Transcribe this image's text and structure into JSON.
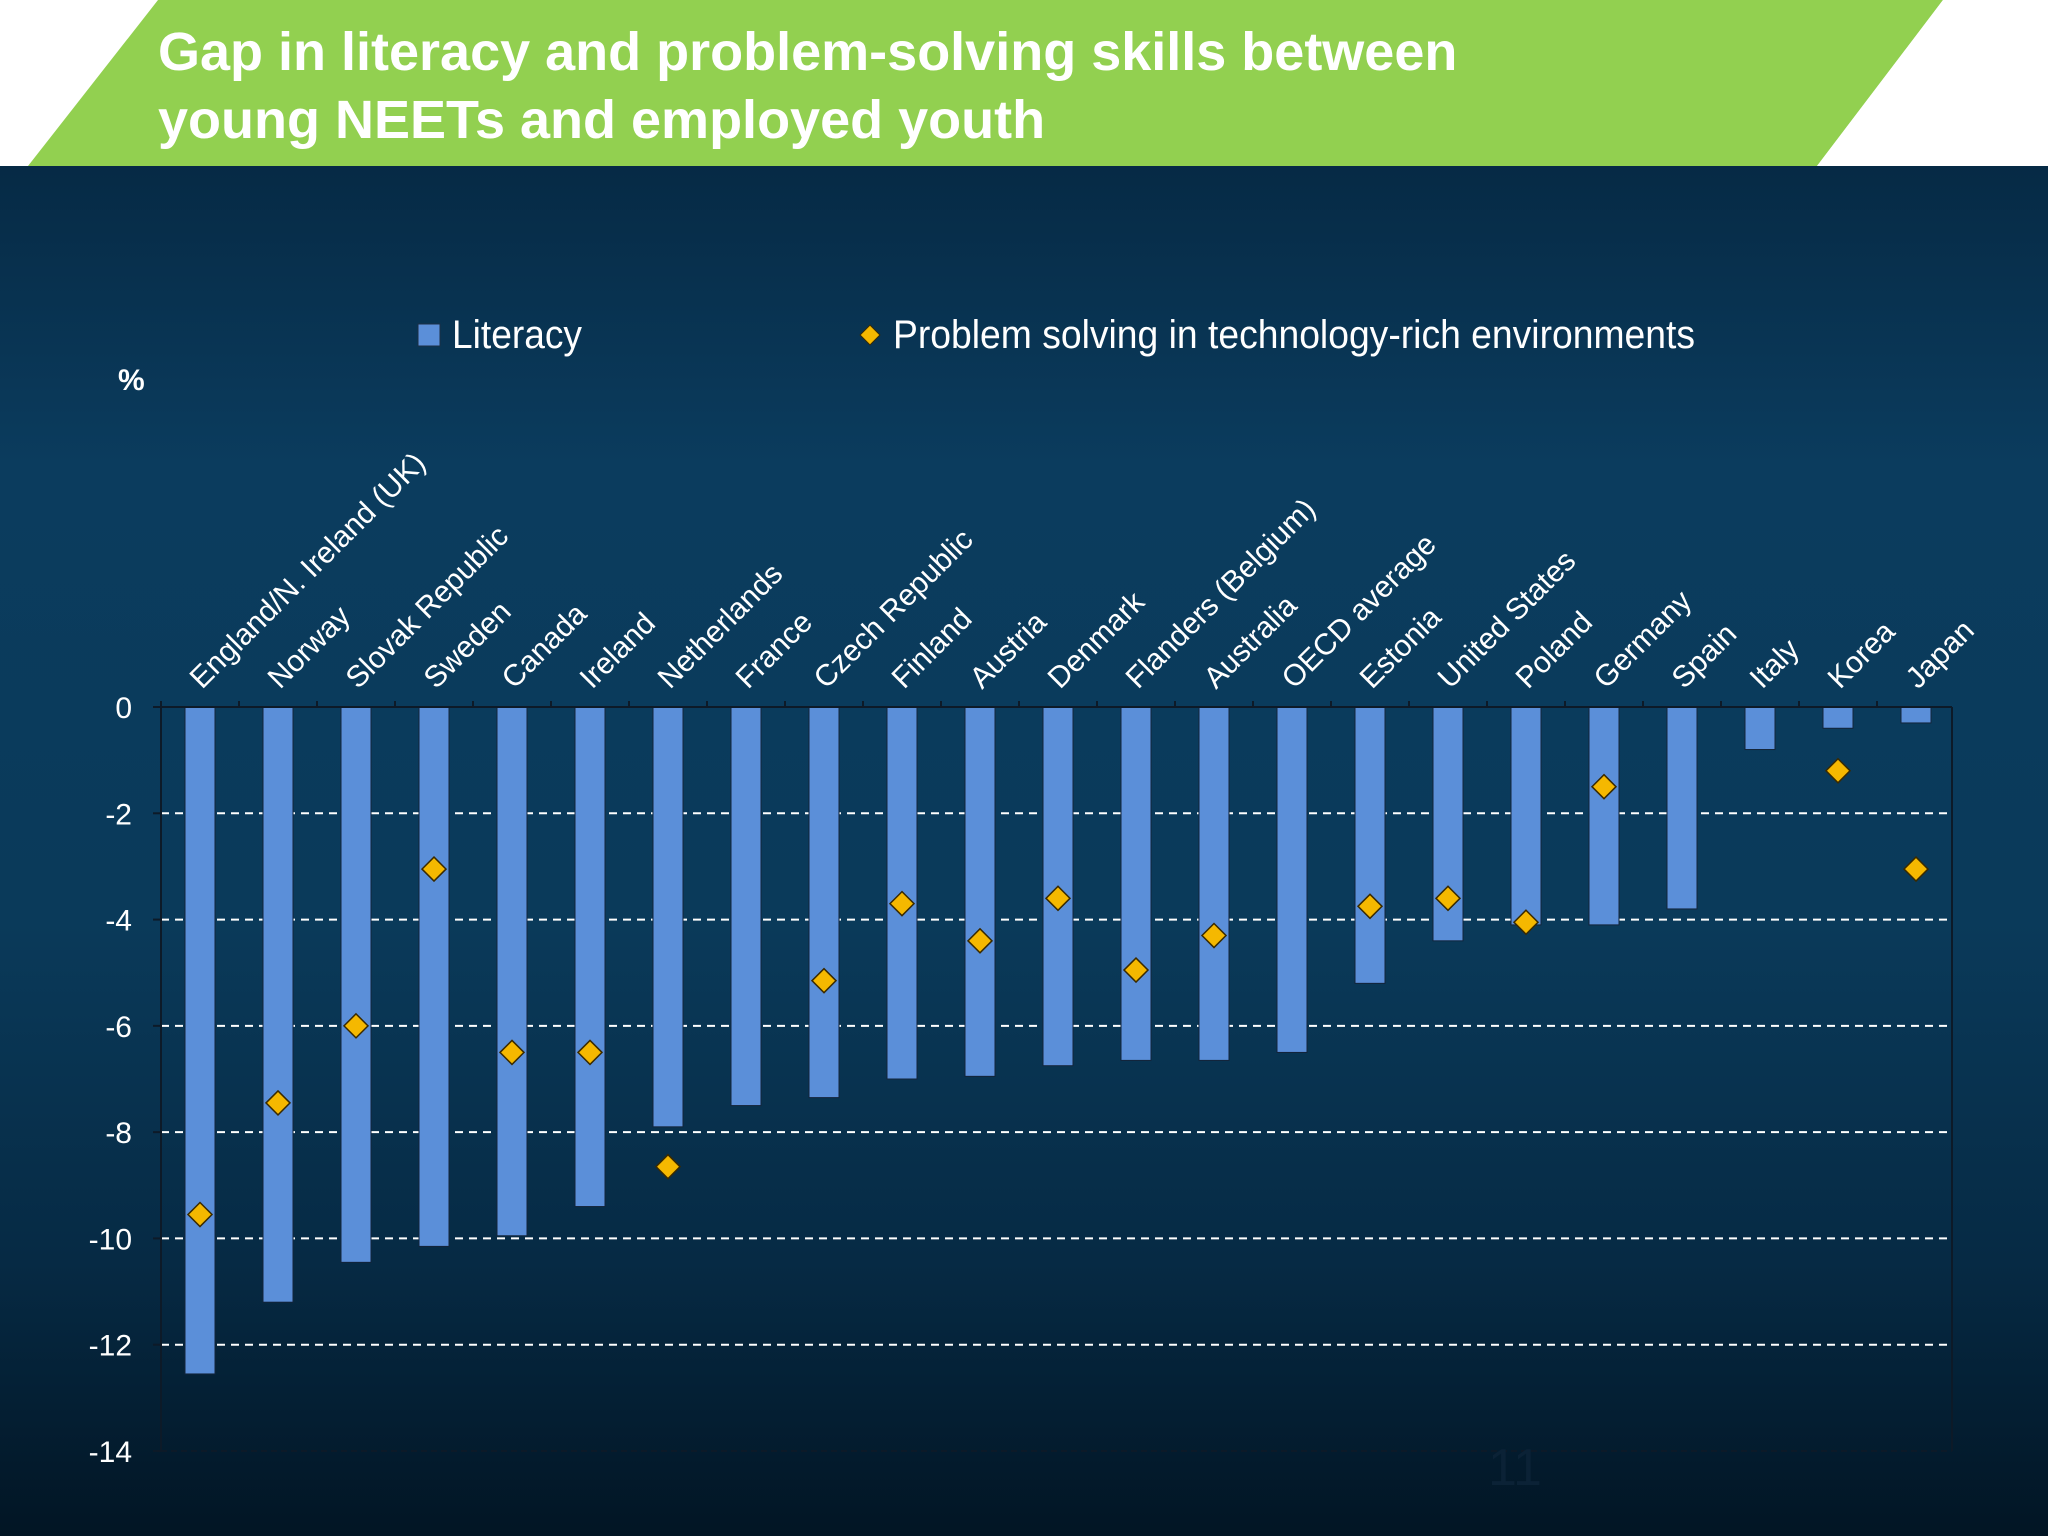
{
  "title": "Gap in literacy and problem-solving skills between young NEETs and employed youth",
  "title_lines": [
    "Gap in literacy and problem-solving skills between",
    "young NEETs and employed youth"
  ],
  "colors": {
    "banner": "#92d050",
    "bar": "#5b8fd9",
    "marker": "#f5b800",
    "text": "#ffffff"
  },
  "page_number": "11",
  "chart_data": {
    "type": "bar",
    "ylabel": "%",
    "ylim": [
      -14,
      0
    ],
    "yticks": [
      0,
      -2,
      -4,
      -6,
      -8,
      -10,
      -12,
      -14
    ],
    "grid": "dashed horizontal",
    "legend_position": "top",
    "categories": [
      "England/N. Ireland (UK)",
      "Norway",
      "Slovak Republic",
      "Sweden",
      "Canada",
      "Ireland",
      "Netherlands",
      "France",
      "Czech Republic",
      "Finland",
      "Austria",
      "Denmark",
      "Flanders (Belgium)",
      "Australia",
      "OECD average",
      "Estonia",
      "United States",
      "Poland",
      "Germany",
      "Spain",
      "Italy",
      "Korea",
      "Japan"
    ],
    "series": [
      {
        "name": "Literacy",
        "type": "bar",
        "values": [
          -12.55,
          -11.2,
          -10.45,
          -10.15,
          -9.95,
          -9.4,
          -7.9,
          -7.5,
          -7.35,
          -7.0,
          -6.95,
          -6.75,
          -6.65,
          -6.65,
          -6.5,
          -5.2,
          -4.4,
          -4.1,
          -4.1,
          -3.8,
          -0.8,
          -0.4,
          -0.3
        ]
      },
      {
        "name": "Problem solving in technology-rich environments",
        "type": "scatter",
        "marker": "diamond",
        "values": [
          -9.55,
          -7.45,
          -6.0,
          -3.05,
          -6.5,
          -6.5,
          -8.65,
          null,
          -5.15,
          -3.7,
          -4.4,
          -3.6,
          -4.95,
          -4.3,
          null,
          -3.75,
          -3.6,
          -4.05,
          -1.5,
          null,
          null,
          -1.2,
          -3.05
        ]
      }
    ]
  }
}
